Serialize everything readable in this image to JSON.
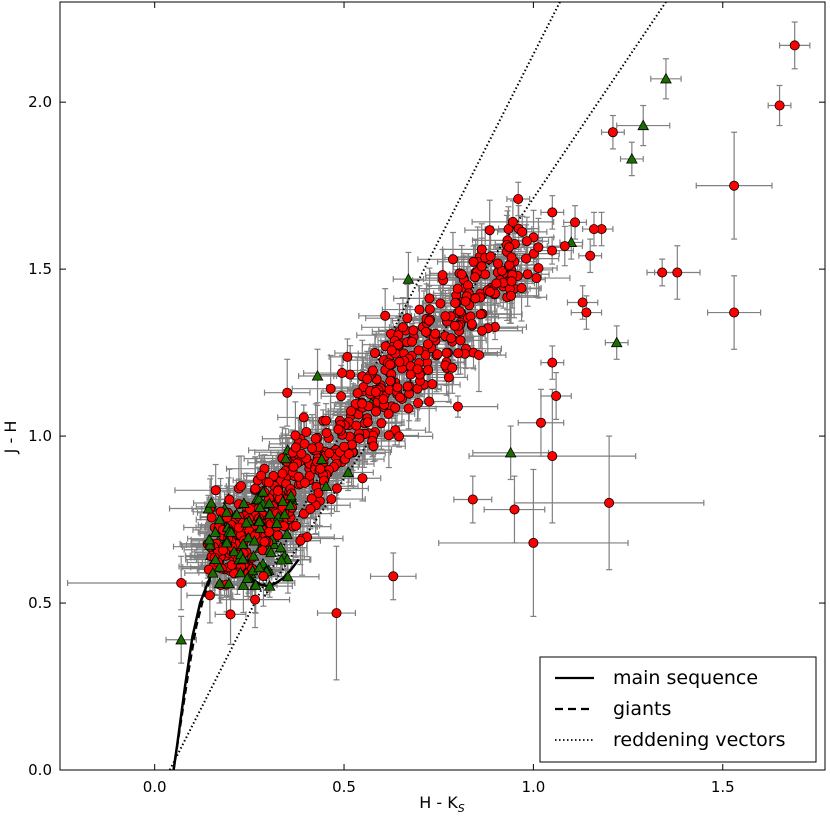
{
  "chart_data": {
    "type": "scatter",
    "xlabel": "H - K",
    "xlabel_sub": "S",
    "ylabel": "J - H",
    "xlim": [
      -0.25,
      1.77
    ],
    "ylim": [
      0.0,
      2.3
    ],
    "x_ticks": [
      0.0,
      0.5,
      1.0,
      1.5
    ],
    "x_tick_labels": [
      "0.0",
      "0.5",
      "1.0",
      "1.5"
    ],
    "y_ticks": [
      0.0,
      0.5,
      1.0,
      1.5,
      2.0
    ],
    "y_tick_labels": [
      "0.0",
      "0.5",
      "1.0",
      "1.5",
      "2.0"
    ],
    "grid": false,
    "legend_position": "bottom-right",
    "legend": [
      {
        "label": "main sequence",
        "style": "solid"
      },
      {
        "label": "giants",
        "style": "dashed"
      },
      {
        "label": "reddening vectors",
        "style": "dotted"
      }
    ],
    "colors": {
      "circle_fill": "#ff0000",
      "triangle_fill": "#1a6e00",
      "errorbar": "#808080",
      "curve": "#000000"
    },
    "lines": {
      "main_sequence": {
        "x": [
          0.05,
          0.06,
          0.08,
          0.1,
          0.12,
          0.14,
          0.16,
          0.18,
          0.2,
          0.22,
          0.24,
          0.26,
          0.28,
          0.3,
          0.32,
          0.34,
          0.36,
          0.38
        ],
        "y": [
          0.0,
          0.08,
          0.25,
          0.4,
          0.5,
          0.56,
          0.61,
          0.63,
          0.64,
          0.62,
          0.59,
          0.57,
          0.555,
          0.55,
          0.56,
          0.575,
          0.6,
          0.63
        ]
      },
      "giants": {
        "x": [
          0.05,
          0.07,
          0.09,
          0.11,
          0.13,
          0.15,
          0.17,
          0.19,
          0.21
        ],
        "y": [
          0.0,
          0.15,
          0.3,
          0.43,
          0.52,
          0.58,
          0.62,
          0.66,
          0.69
        ]
      },
      "reddening_vectors": [
        {
          "x": [
            0.04,
            1.07
          ],
          "y": [
            0.0,
            2.3
          ]
        },
        {
          "x": [
            0.29,
            1.35
          ],
          "y": [
            0.52,
            2.3
          ]
        }
      ]
    },
    "series": [
      {
        "marker": "circle",
        "points": [
          {
            "x": 1.69,
            "y": 2.17,
            "xerr": 0.04,
            "yerr": 0.07
          },
          {
            "x": 1.65,
            "y": 1.99,
            "xerr": 0.03,
            "yerr": 0.06
          },
          {
            "x": 1.21,
            "y": 1.91,
            "xerr": 0.03,
            "yerr": 0.05
          },
          {
            "x": 1.53,
            "y": 1.75,
            "xerr": 0.1,
            "yerr": 0.16
          },
          {
            "x": 0.96,
            "y": 1.71,
            "xerr": 0.03,
            "yerr": 0.05
          },
          {
            "x": 1.34,
            "y": 1.49,
            "xerr": 0.04,
            "yerr": 0.04
          },
          {
            "x": 1.38,
            "y": 1.49,
            "xerr": 0.06,
            "yerr": 0.08
          },
          {
            "x": 1.53,
            "y": 1.37,
            "xerr": 0.07,
            "yerr": 0.11
          },
          {
            "x": 1.18,
            "y": 1.62,
            "xerr": 0.03,
            "yerr": 0.05
          },
          {
            "x": 1.16,
            "y": 1.62,
            "xerr": 0.03,
            "yerr": 0.05
          },
          {
            "x": 1.11,
            "y": 1.64,
            "xerr": 0.03,
            "yerr": 0.05
          },
          {
            "x": 1.05,
            "y": 1.67,
            "xerr": 0.03,
            "yerr": 0.05
          },
          {
            "x": 1.15,
            "y": 1.54,
            "xerr": 0.03,
            "yerr": 0.05
          },
          {
            "x": 1.13,
            "y": 1.4,
            "xerr": 0.04,
            "yerr": 0.05
          },
          {
            "x": 1.14,
            "y": 1.37,
            "xerr": 0.04,
            "yerr": 0.05
          },
          {
            "x": 1.05,
            "y": 1.22,
            "xerr": 0.03,
            "yerr": 0.05
          },
          {
            "x": 1.06,
            "y": 1.12,
            "xerr": 0.04,
            "yerr": 0.07
          },
          {
            "x": 1.02,
            "y": 1.04,
            "xerr": 0.06,
            "yerr": 0.1
          },
          {
            "x": 1.05,
            "y": 0.94,
            "xerr": 0.22,
            "yerr": 0.2
          },
          {
            "x": 1.2,
            "y": 0.8,
            "xerr": 0.25,
            "yerr": 0.2
          },
          {
            "x": 0.95,
            "y": 0.78,
            "xerr": 0.08,
            "yerr": 0.1
          },
          {
            "x": 1.0,
            "y": 0.68,
            "xerr": 0.25,
            "yerr": 0.22
          },
          {
            "x": 0.84,
            "y": 0.81,
            "xerr": 0.05,
            "yerr": 0.07
          },
          {
            "x": 0.63,
            "y": 0.58,
            "xerr": 0.06,
            "yerr": 0.07
          },
          {
            "x": 0.07,
            "y": 0.56,
            "xerr": 0.3,
            "yerr": 0.08
          },
          {
            "x": 0.35,
            "y": 1.13,
            "xerr": 0.06,
            "yerr": 0.1
          },
          {
            "x": 0.48,
            "y": 0.47,
            "xerr": 0.05,
            "yerr": 0.2
          }
        ]
      },
      {
        "marker": "triangle",
        "points": [
          {
            "x": 1.35,
            "y": 2.07,
            "xerr": 0.04,
            "yerr": 0.06
          },
          {
            "x": 1.29,
            "y": 1.93,
            "xerr": 0.07,
            "yerr": 0.06
          },
          {
            "x": 1.26,
            "y": 1.83,
            "xerr": 0.03,
            "yerr": 0.05
          },
          {
            "x": 1.22,
            "y": 1.28,
            "xerr": 0.03,
            "yerr": 0.05
          },
          {
            "x": 1.1,
            "y": 1.58,
            "xerr": 0.03,
            "yerr": 0.05
          },
          {
            "x": 0.67,
            "y": 1.47,
            "xerr": 0.04,
            "yerr": 0.08
          },
          {
            "x": 0.43,
            "y": 1.18,
            "xerr": 0.05,
            "yerr": 0.08
          },
          {
            "x": 0.07,
            "y": 0.39,
            "xerr": 0.04,
            "yerr": 0.07
          },
          {
            "x": 0.94,
            "y": 0.95,
            "xerr": 0.1,
            "yerr": 0.08
          }
        ]
      }
    ]
  }
}
